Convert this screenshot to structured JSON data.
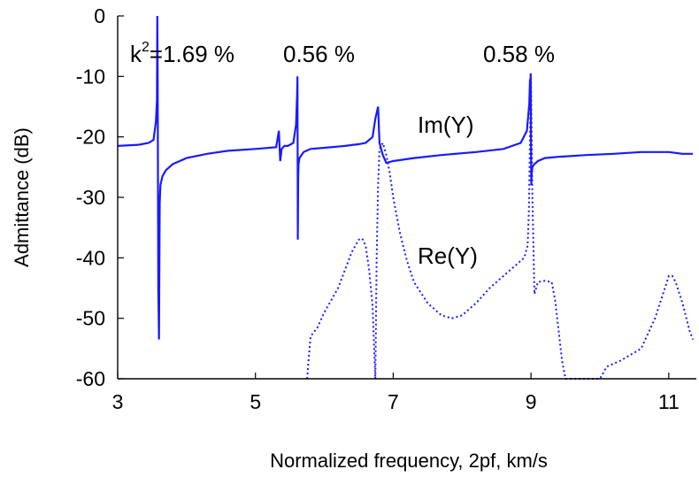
{
  "chart_data": {
    "type": "line",
    "title": "",
    "xlabel": "Normalized frequency, 2pf, km/s",
    "ylabel": "Admittance (dB)",
    "xlim": [
      3,
      11.4
    ],
    "ylim": [
      -60,
      0
    ],
    "x_ticks": [
      3,
      5,
      7,
      9,
      11
    ],
    "y_ticks": [
      0,
      -10,
      -20,
      -30,
      -40,
      -50,
      -60
    ],
    "grid": false,
    "legend": "none",
    "annotations": {
      "k2_prefix": "k",
      "k2_sup": "2",
      "k2_rest": "=1.69 %",
      "mode2": "0.56 %",
      "mode3": "0.58 %"
    },
    "series": [
      {
        "name": "Im(Y)",
        "style": "solid",
        "color": "#1a1aff",
        "x": [
          3.0,
          3.3,
          3.45,
          3.52,
          3.555,
          3.57,
          3.575,
          3.58,
          3.59,
          3.6,
          3.61,
          3.62,
          3.65,
          3.7,
          3.8,
          4.0,
          4.3,
          4.6,
          5.0,
          5.3,
          5.34,
          5.36,
          5.38,
          5.42,
          5.47,
          5.55,
          5.59,
          5.605,
          5.61,
          5.615,
          5.62,
          5.625,
          5.64,
          5.7,
          5.8,
          6.0,
          6.3,
          6.5,
          6.6,
          6.7,
          6.74,
          6.78,
          6.8,
          6.85,
          6.9,
          7.0,
          7.3,
          7.7,
          8.2,
          8.6,
          8.85,
          8.94,
          8.975,
          8.985,
          8.99,
          8.995,
          9.0,
          9.005,
          9.01,
          9.02,
          9.05,
          9.1,
          9.2,
          9.4,
          9.8,
          10.2,
          10.6,
          11.0,
          11.2,
          11.35
        ],
        "y": [
          -21.5,
          -21.3,
          -21.0,
          -20.5,
          -17.5,
          -14,
          0,
          -10,
          -45,
          -53.5,
          -31,
          -28,
          -26.5,
          -25.5,
          -24.5,
          -23.5,
          -22.8,
          -22.3,
          -22.0,
          -21.7,
          -19,
          -24,
          -22,
          -21.5,
          -21.5,
          -21,
          -18,
          -13,
          -10,
          -37,
          -27,
          -24.5,
          -23.5,
          -22.5,
          -22,
          -21.8,
          -21.5,
          -21.2,
          -21.0,
          -20.0,
          -17,
          -15,
          -21,
          -23,
          -24.3,
          -24.0,
          -23.5,
          -23.0,
          -22.5,
          -22.0,
          -21.0,
          -19.0,
          -14.5,
          -10.5,
          -11,
          -9.5,
          -20,
          -28,
          -26,
          -25,
          -24.5,
          -24.0,
          -23.5,
          -23.3,
          -23.0,
          -22.8,
          -22.5,
          -22.5,
          -22.8,
          -22.8
        ]
      },
      {
        "name": "Re(Y)",
        "style": "dotted",
        "color": "#1a1aff",
        "x": [
          5.75,
          5.77,
          5.8,
          5.9,
          6.0,
          6.1,
          6.2,
          6.3,
          6.4,
          6.5,
          6.55,
          6.6,
          6.65,
          6.7,
          6.72,
          6.74,
          6.76,
          6.78,
          6.8,
          6.85,
          6.9,
          6.95,
          7.0,
          7.1,
          7.2,
          7.3,
          7.5,
          7.7,
          7.85,
          8.0,
          8.2,
          8.4,
          8.6,
          8.8,
          8.9,
          8.95,
          8.97,
          8.985,
          9.0,
          9.02,
          9.05,
          9.1,
          9.2,
          9.3,
          9.35,
          9.4,
          9.45,
          9.5,
          10.0,
          10.1,
          10.3,
          10.6,
          10.8,
          10.9,
          11.0,
          11.05,
          11.1,
          11.2,
          11.3,
          11.35
        ],
        "y": [
          -60,
          -57,
          -53,
          -51.5,
          -49,
          -47,
          -45,
          -42,
          -39,
          -37,
          -36.8,
          -38,
          -42,
          -48,
          -54,
          -60,
          -40,
          -28,
          -22,
          -21,
          -23,
          -26,
          -30,
          -36,
          -40.5,
          -44,
          -47.5,
          -49.5,
          -50,
          -49.5,
          -47.5,
          -45,
          -43,
          -41,
          -40,
          -38,
          -32,
          -20,
          -10,
          -30,
          -46,
          -44,
          -43.8,
          -44,
          -47,
          -52,
          -57,
          -60,
          -60,
          -58,
          -57,
          -55,
          -50,
          -46.5,
          -43,
          -43,
          -44,
          -47.5,
          -52,
          -53.5
        ]
      }
    ]
  }
}
